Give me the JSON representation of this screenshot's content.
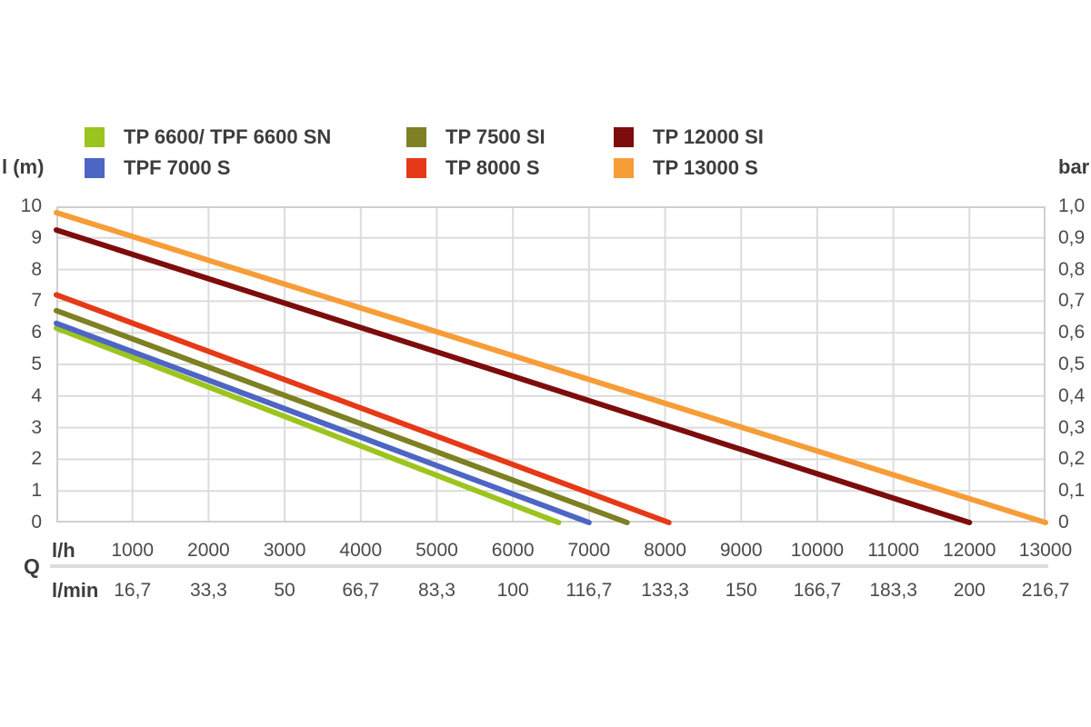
{
  "axis_labels": {
    "left": "l (m)",
    "right": "bar",
    "flow": "Q",
    "flow_unit_hour": "l/h",
    "flow_unit_min": "l/min"
  },
  "axis_ticks": {
    "head_m": [
      "10",
      "9",
      "8",
      "7",
      "6",
      "5",
      "4",
      "3",
      "2",
      "1",
      "0"
    ],
    "pressure_bar": [
      "1,0",
      "0,9",
      "0,8",
      "0,7",
      "0,6",
      "0,5",
      "0,4",
      "0,3",
      "0,2",
      "0,1",
      "0"
    ],
    "flow_lh": [
      "1000",
      "2000",
      "3000",
      "4000",
      "5000",
      "6000",
      "7000",
      "8000",
      "9000",
      "10000",
      "11000",
      "12000",
      "13000"
    ],
    "flow_lmin": [
      "16,7",
      "33,3",
      "50",
      "66,7",
      "83,3",
      "100",
      "116,7",
      "133,3",
      "150",
      "166,7",
      "183,3",
      "200",
      "216,7"
    ]
  },
  "chart_data": {
    "type": "line",
    "title": "",
    "xlabel": "Q",
    "x_units": [
      "l/h",
      "l/min"
    ],
    "ylabel_left": "l (m)",
    "ylabel_right": "bar",
    "xlim": [
      0,
      13000
    ],
    "ylim_m": [
      0,
      10
    ],
    "ylim_bar": [
      0,
      1.0
    ],
    "grid": true,
    "legend_position": "top",
    "series": [
      {
        "name": "TP 6600/ TPF 6600 SN",
        "color": "#9cc41e",
        "points": [
          [
            0,
            6.15
          ],
          [
            6600,
            0
          ]
        ]
      },
      {
        "name": "TPF 7000 S",
        "color": "#4d66c4",
        "points": [
          [
            0,
            6.3
          ],
          [
            7000,
            0
          ]
        ]
      },
      {
        "name": "TP 7500 SI",
        "color": "#7d8023",
        "points": [
          [
            0,
            6.7
          ],
          [
            7500,
            0
          ]
        ]
      },
      {
        "name": "TP 8000 S",
        "color": "#e63917",
        "points": [
          [
            0,
            7.2
          ],
          [
            8050,
            0
          ]
        ]
      },
      {
        "name": "TP 12000 SI",
        "color": "#7d0c0c",
        "points": [
          [
            0,
            9.25
          ],
          [
            12000,
            0
          ]
        ]
      },
      {
        "name": "TP 13000 S",
        "color": "#f69d38",
        "points": [
          [
            0,
            9.8
          ],
          [
            13000,
            0
          ]
        ]
      }
    ]
  },
  "colors": {
    "grid": "#dcdcdc",
    "plot_border": "#cfcfcf",
    "tick_text": "#4b4b4b",
    "label_text": "#3d3d3d",
    "separator": "#dcdcdc"
  }
}
